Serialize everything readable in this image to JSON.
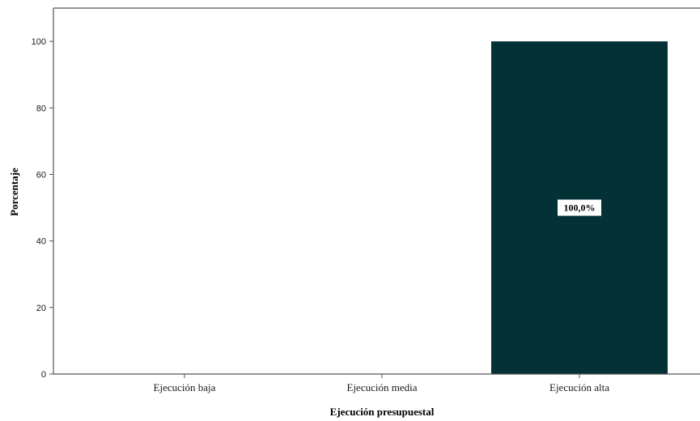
{
  "chart_data": {
    "type": "bar",
    "categories": [
      "Ejecución baja",
      "Ejecución media",
      "Ejecución alta"
    ],
    "values": [
      0,
      0,
      100
    ],
    "data_labels": [
      "",
      "",
      "100,0%"
    ],
    "xlabel": "Ejecución presupuestal",
    "ylabel": "Porcentaje",
    "ylim": [
      0,
      110
    ],
    "yticks": [
      0,
      20,
      40,
      60,
      80,
      100
    ],
    "ytick_labels": [
      "0",
      "20",
      "40",
      "60",
      "80",
      "100"
    ],
    "grid": false,
    "colors": {
      "bar": "#033135",
      "axis": "#555555",
      "label_box": "#ffffff"
    }
  }
}
